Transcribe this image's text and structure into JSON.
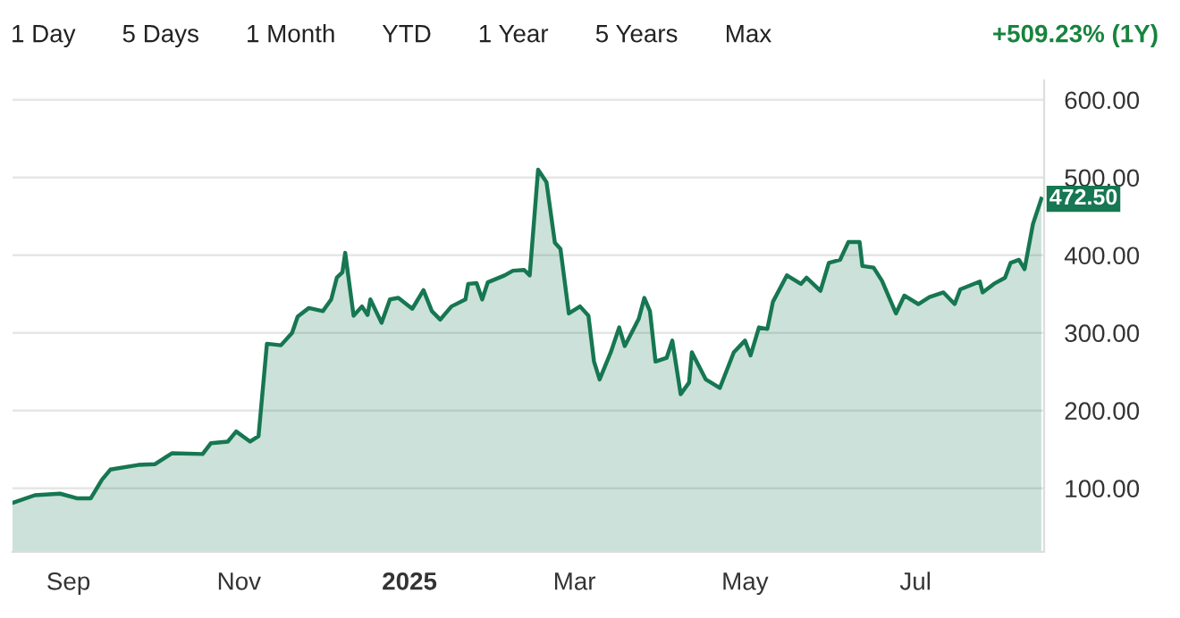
{
  "chart_data": {
    "type": "area",
    "x": [
      "2024-08-12",
      "2024-08-20",
      "2024-08-29",
      "2024-09-04",
      "2024-09-09",
      "2024-09-13",
      "2024-09-16",
      "2024-09-26",
      "2024-10-02",
      "2024-10-08",
      "2024-10-19",
      "2024-10-22",
      "2024-10-28",
      "2024-10-31",
      "2024-11-05",
      "2024-11-08",
      "2024-11-11",
      "2024-11-16",
      "2024-11-20",
      "2024-11-22",
      "2024-11-26",
      "2024-12-01",
      "2024-12-04",
      "2024-12-06",
      "2024-12-08",
      "2024-12-09",
      "2024-12-12",
      "2024-12-15",
      "2024-12-17",
      "2024-12-18",
      "2024-12-22",
      "2024-12-25",
      "2024-12-28",
      "2025-01-02",
      "2025-01-06",
      "2025-01-09",
      "2025-01-12",
      "2025-01-16",
      "2025-01-21",
      "2025-01-22",
      "2025-01-25",
      "2025-01-27",
      "2025-01-29",
      "2025-02-04",
      "2025-02-07",
      "2025-02-11",
      "2025-02-13",
      "2025-02-16",
      "2025-02-19",
      "2025-02-22",
      "2025-02-24",
      "2025-02-27",
      "2025-03-03",
      "2025-03-06",
      "2025-03-08",
      "2025-03-10",
      "2025-03-14",
      "2025-03-17",
      "2025-03-19",
      "2025-03-24",
      "2025-03-26",
      "2025-03-28",
      "2025-03-30",
      "2025-04-03",
      "2025-04-05",
      "2025-04-08",
      "2025-04-11",
      "2025-04-12",
      "2025-04-17",
      "2025-04-22",
      "2025-04-27",
      "2025-05-01",
      "2025-05-03",
      "2025-05-06",
      "2025-05-09",
      "2025-05-11",
      "2025-05-16",
      "2025-05-21",
      "2025-05-23",
      "2025-05-28",
      "2025-05-31",
      "2025-06-04",
      "2025-06-07",
      "2025-06-11",
      "2025-06-12",
      "2025-06-16",
      "2025-06-19",
      "2025-06-24",
      "2025-06-27",
      "2025-07-02",
      "2025-07-06",
      "2025-07-11",
      "2025-07-15",
      "2025-07-17",
      "2025-07-24",
      "2025-07-25",
      "2025-07-29",
      "2025-08-02",
      "2025-08-04",
      "2025-08-07",
      "2025-08-09",
      "2025-08-12",
      "2025-08-15"
    ],
    "values": [
      81,
      91,
      93,
      87,
      87,
      111,
      124,
      130,
      131,
      145,
      144,
      158,
      160,
      173,
      160,
      167,
      286,
      284,
      300,
      321,
      332,
      328,
      343,
      371,
      378,
      403,
      322,
      334,
      323,
      343,
      313,
      343,
      345,
      331,
      355,
      328,
      317,
      334,
      343,
      363,
      364,
      343,
      365,
      374,
      380,
      381,
      374,
      510,
      494,
      416,
      408,
      325,
      334,
      322,
      263,
      240,
      275,
      307,
      283,
      318,
      345,
      328,
      263,
      268,
      290,
      221,
      236,
      275,
      240,
      229,
      275,
      290,
      271,
      307,
      305,
      340,
      374,
      363,
      371,
      354,
      390,
      394,
      417,
      417,
      386,
      384,
      367,
      325,
      348,
      337,
      346,
      352,
      337,
      356,
      366,
      352,
      363,
      371,
      390,
      394,
      382,
      440,
      472.5
    ],
    "color": "#167752",
    "xlim": [
      "2024-08-12",
      "2025-08-16"
    ],
    "xticks": [
      {
        "value": "2024-09-01",
        "label": "Sep"
      },
      {
        "value": "2024-11-01",
        "label": "Nov"
      },
      {
        "value": "2025-01-01",
        "label": "2025"
      },
      {
        "value": "2025-03-01",
        "label": "Mar"
      },
      {
        "value": "2025-05-01",
        "label": "May"
      },
      {
        "value": "2025-07-01",
        "label": "Jul"
      }
    ],
    "ylim": [
      18,
      625
    ],
    "yticks": [
      {
        "value": 100,
        "label": "100.00"
      },
      {
        "value": 200,
        "label": "200.00"
      },
      {
        "value": 300,
        "label": "300.00"
      },
      {
        "value": 400,
        "label": "400.00"
      },
      {
        "value": 500,
        "label": "500.00"
      },
      {
        "value": 600,
        "label": "600.00"
      }
    ],
    "grid": "y",
    "legend": false,
    "annotations": [
      "1 Day",
      "5 Days",
      "1 Month",
      "YTD",
      "1 Year",
      "5 Years",
      "Max",
      "+509.23% (1Y)",
      {
        "text": "472.50",
        "x": "2025-08-15",
        "y": 472.5
      }
    ]
  }
}
